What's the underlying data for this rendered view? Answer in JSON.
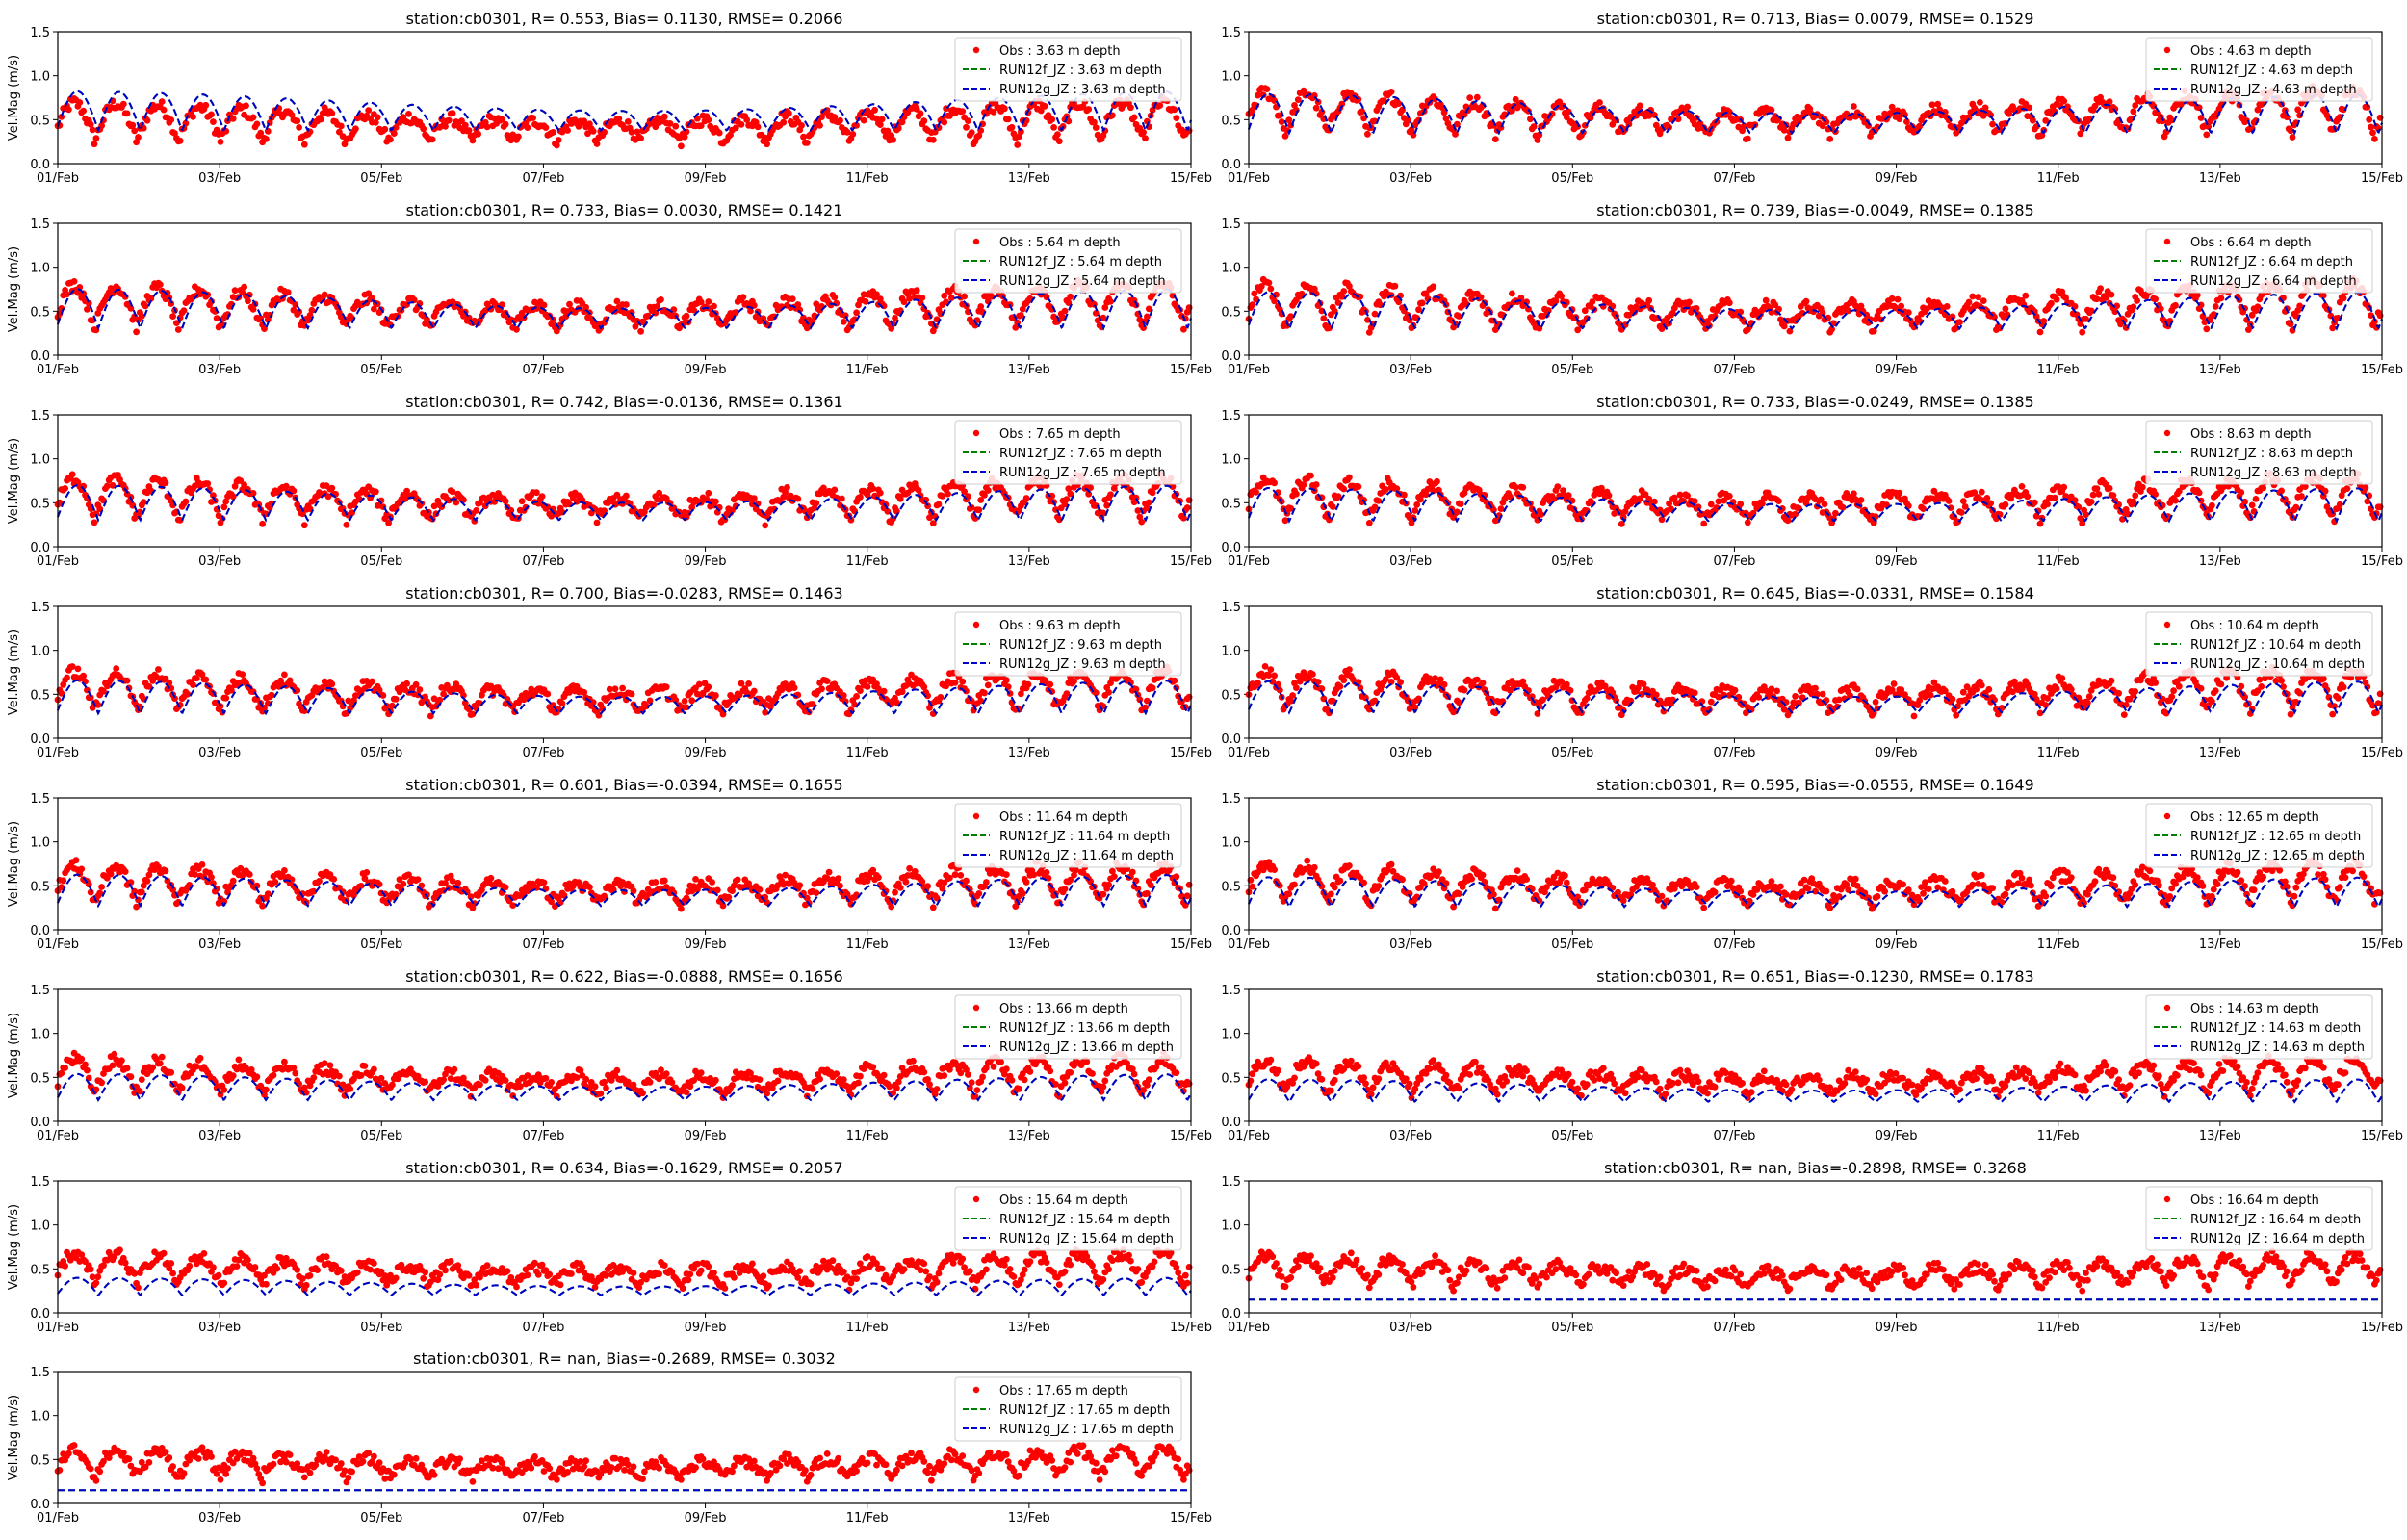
{
  "chart_data": {
    "type": "line",
    "layout": {
      "columns": 2,
      "rows": 8
    },
    "x_axis": {
      "range": [
        "01/Feb",
        "15/Feb"
      ],
      "tick_labels": [
        "01/Feb",
        "03/Feb",
        "05/Feb",
        "07/Feb",
        "09/Feb",
        "11/Feb",
        "13/Feb",
        "15/Feb"
      ]
    },
    "ylabel": "Vel.Mag (m/s)",
    "ylim": [
      0,
      1.5
    ],
    "y_ticks": [
      "0.0",
      "0.5",
      "1.0",
      "1.5"
    ],
    "legend_position": "top-right",
    "series_styles": {
      "obs": {
        "color": "#ff0000",
        "marker": "dot"
      },
      "run12f": {
        "color": "#008000",
        "line": "dashed"
      },
      "run12g": {
        "color": "#0000cc",
        "line": "dashed"
      }
    },
    "panels": [
      {
        "title": "station:cb0301, R= 0.553, Bias= 0.1130, RMSE= 0.2066",
        "legend": [
          "Obs : 3.63 m depth",
          "RUN12f_JZ : 3.63 m depth",
          "RUN12g_JZ : 3.63 m depth"
        ],
        "show_ylabel": true,
        "obs_mean": 0.3,
        "model_mean": 0.45,
        "model_amp": 0.45,
        "obs_amp": 0.45
      },
      {
        "title": "station:cb0301, R= 0.713, Bias= 0.0079, RMSE= 0.1529",
        "legend": [
          "Obs : 4.63 m depth",
          "RUN12f_JZ : 4.63 m depth",
          "RUN12g_JZ : 4.63 m depth"
        ],
        "show_ylabel": false,
        "obs_mean": 0.4,
        "model_mean": 0.42,
        "model_amp": 0.45,
        "obs_amp": 0.5
      },
      {
        "title": "station:cb0301, R= 0.733, Bias= 0.0030, RMSE= 0.1421",
        "legend": [
          "Obs : 5.64 m depth",
          "RUN12f_JZ : 5.64 m depth",
          "RUN12g_JZ : 5.64 m depth"
        ],
        "show_ylabel": true,
        "obs_mean": 0.38,
        "model_mean": 0.38,
        "model_amp": 0.45,
        "obs_amp": 0.5
      },
      {
        "title": "station:cb0301, R= 0.739, Bias=-0.0049, RMSE= 0.1385",
        "legend": [
          "Obs : 6.64 m depth",
          "RUN12f_JZ : 6.64 m depth",
          "RUN12g_JZ : 6.64 m depth"
        ],
        "show_ylabel": false,
        "obs_mean": 0.38,
        "model_mean": 0.36,
        "model_amp": 0.42,
        "obs_amp": 0.5
      },
      {
        "title": "station:cb0301, R= 0.742, Bias=-0.0136, RMSE= 0.1361",
        "legend": [
          "Obs : 7.65 m depth",
          "RUN12f_JZ : 7.65 m depth",
          "RUN12g_JZ : 7.65 m depth"
        ],
        "show_ylabel": true,
        "obs_mean": 0.37,
        "model_mean": 0.35,
        "model_amp": 0.4,
        "obs_amp": 0.48
      },
      {
        "title": "station:cb0301, R= 0.733, Bias=-0.0249, RMSE= 0.1385",
        "legend": [
          "Obs : 8.63 m depth",
          "RUN12f_JZ : 8.63 m depth",
          "RUN12g_JZ : 8.63 m depth"
        ],
        "show_ylabel": false,
        "obs_mean": 0.37,
        "model_mean": 0.33,
        "model_amp": 0.38,
        "obs_amp": 0.48
      },
      {
        "title": "station:cb0301, R= 0.700, Bias=-0.0283, RMSE= 0.1463",
        "legend": [
          "Obs : 9.63 m depth",
          "RUN12f_JZ : 9.63 m depth",
          "RUN12g_JZ : 9.63 m depth"
        ],
        "show_ylabel": true,
        "obs_mean": 0.36,
        "model_mean": 0.32,
        "model_amp": 0.38,
        "obs_amp": 0.46
      },
      {
        "title": "station:cb0301, R= 0.645, Bias=-0.0331, RMSE= 0.1584",
        "legend": [
          "Obs : 10.64 m depth",
          "RUN12f_JZ : 10.64 m depth",
          "RUN12g_JZ : 10.64 m depth"
        ],
        "show_ylabel": false,
        "obs_mean": 0.36,
        "model_mean": 0.32,
        "model_amp": 0.36,
        "obs_amp": 0.46
      },
      {
        "title": "station:cb0301, R= 0.601, Bias=-0.0394, RMSE= 0.1655",
        "legend": [
          "Obs : 11.64 m depth",
          "RUN12f_JZ : 11.64 m depth",
          "RUN12g_JZ : 11.64 m depth"
        ],
        "show_ylabel": true,
        "obs_mean": 0.34,
        "model_mean": 0.3,
        "model_amp": 0.36,
        "obs_amp": 0.44
      },
      {
        "title": "station:cb0301, R= 0.595, Bias=-0.0555, RMSE= 0.1649",
        "legend": [
          "Obs : 12.65 m depth",
          "RUN12f_JZ : 12.65 m depth",
          "RUN12g_JZ : 12.65 m depth"
        ],
        "show_ylabel": false,
        "obs_mean": 0.34,
        "model_mean": 0.28,
        "model_amp": 0.34,
        "obs_amp": 0.44
      },
      {
        "title": "station:cb0301, R= 0.622, Bias=-0.0888, RMSE= 0.1656",
        "legend": [
          "Obs : 13.66 m depth",
          "RUN12f_JZ : 13.66 m depth",
          "RUN12g_JZ : 13.66 m depth"
        ],
        "show_ylabel": true,
        "obs_mean": 0.34,
        "model_mean": 0.24,
        "model_amp": 0.3,
        "obs_amp": 0.4
      },
      {
        "title": "station:cb0301, R= 0.651, Bias=-0.1230, RMSE= 0.1783",
        "legend": [
          "Obs : 14.63 m depth",
          "RUN12f_JZ : 14.63 m depth",
          "RUN12g_JZ : 14.63 m depth"
        ],
        "show_ylabel": false,
        "obs_mean": 0.33,
        "model_mean": 0.2,
        "model_amp": 0.26,
        "obs_amp": 0.38
      },
      {
        "title": "station:cb0301, R= 0.634, Bias=-0.1629, RMSE= 0.2057",
        "legend": [
          "Obs : 15.64 m depth",
          "RUN12f_JZ : 15.64 m depth",
          "RUN12g_JZ : 15.64 m depth"
        ],
        "show_ylabel": true,
        "obs_mean": 0.32,
        "model_mean": 0.15,
        "model_amp": 0.2,
        "obs_amp": 0.36
      },
      {
        "title": "station:cb0301, R=   nan, Bias=-0.2898, RMSE= 0.3268",
        "legend": [
          "Obs : 16.64 m depth",
          "RUN12f_JZ : 16.64 m depth",
          "RUN12g_JZ : 16.64 m depth"
        ],
        "show_ylabel": false,
        "obs_mean": 0.3,
        "model_mean": 0.0,
        "model_amp": 0.0,
        "obs_amp": 0.34
      },
      {
        "title": "station:cb0301, R=   nan, Bias=-0.2689, RMSE= 0.3032",
        "legend": [
          "Obs : 17.65 m depth",
          "RUN12f_JZ : 17.65 m depth",
          "RUN12g_JZ : 17.65 m depth"
        ],
        "show_ylabel": true,
        "obs_mean": 0.28,
        "model_mean": 0.0,
        "model_amp": 0.0,
        "obs_amp": 0.32
      }
    ]
  }
}
